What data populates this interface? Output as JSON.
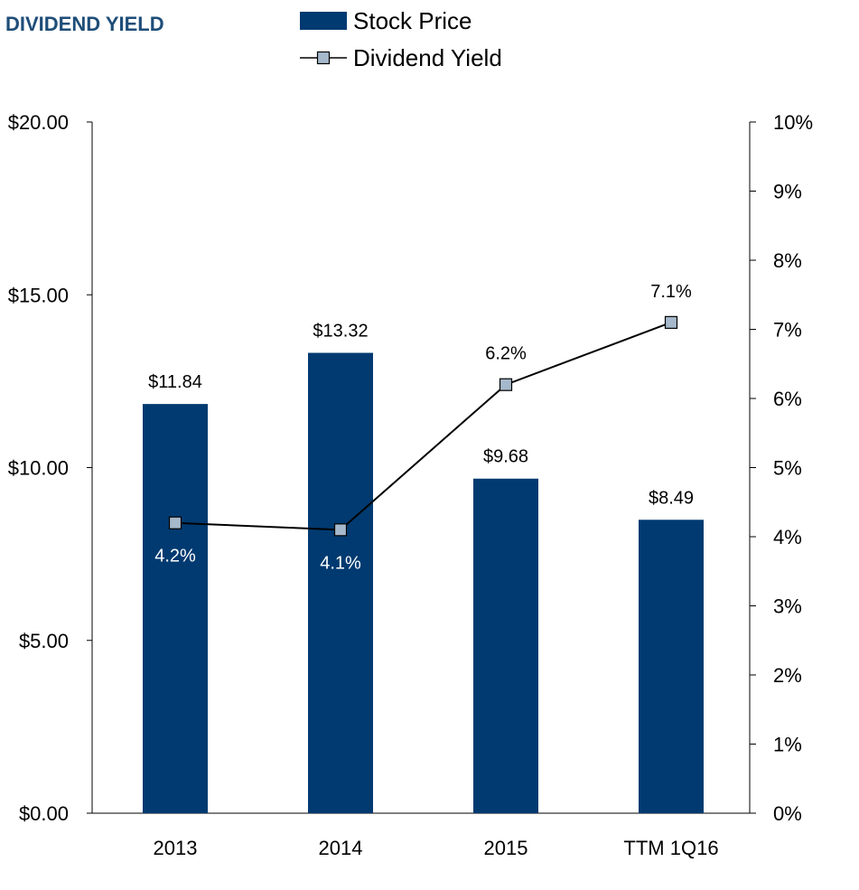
{
  "page_title": "DIVIDEND YIELD",
  "colors": {
    "bar": "#003a70",
    "marker": "#a6b8cb",
    "line": "#000000",
    "title": "#1f4e79",
    "axis": "#000000"
  },
  "chart_data": {
    "type": "bar",
    "title": "DIVIDEND YIELD",
    "categories": [
      "2013",
      "2014",
      "2015",
      "TTM 1Q16"
    ],
    "series": [
      {
        "name": "Stock Price",
        "type": "bar",
        "axis": "left",
        "values": [
          11.84,
          13.32,
          9.68,
          8.49
        ],
        "labels": [
          "$11.84",
          "$13.32",
          "$9.68",
          "$8.49"
        ]
      },
      {
        "name": "Dividend Yield",
        "type": "line",
        "axis": "right",
        "values": [
          4.2,
          4.1,
          6.2,
          7.1
        ],
        "labels": [
          "4.2%",
          "4.1%",
          "6.2%",
          "7.1%"
        ]
      }
    ],
    "left_axis": {
      "ylim": [
        0,
        20
      ],
      "ticks": [
        0,
        5,
        10,
        15,
        20
      ],
      "tick_labels": [
        "$0.00",
        "$5.00",
        "$10.00",
        "$15.00",
        "$20.00"
      ]
    },
    "right_axis": {
      "ylim": [
        0,
        10
      ],
      "ticks": [
        0,
        1,
        2,
        3,
        4,
        5,
        6,
        7,
        8,
        9,
        10
      ],
      "tick_labels": [
        "0%",
        "1%",
        "2%",
        "3%",
        "4%",
        "5%",
        "6%",
        "7%",
        "8%",
        "9%",
        "10%"
      ]
    },
    "legend": {
      "position": "top-center",
      "entries": [
        "Stock Price",
        "Dividend Yield"
      ]
    },
    "grid": false
  }
}
